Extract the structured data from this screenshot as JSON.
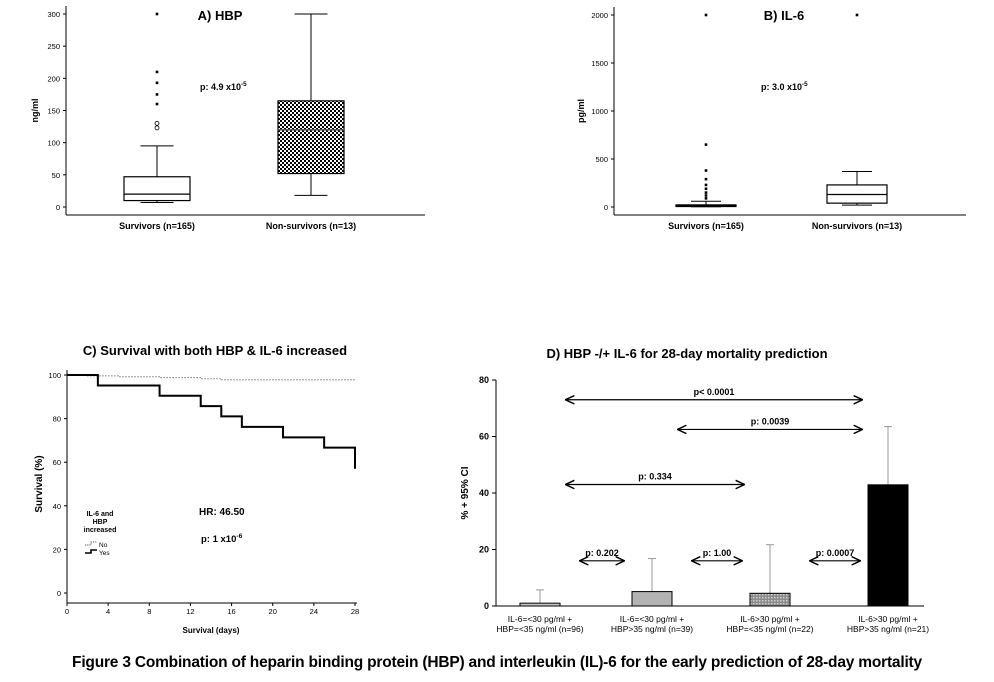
{
  "caption": "Figure 3 Combination of heparin binding protein (HBP) and interleukin (IL)-6 for the early prediction of 28-day mortality",
  "chart_data": [
    {
      "id": "A",
      "type": "box",
      "title": "A) HBP",
      "ylabel": "ng/ml",
      "xlabel": "",
      "ylim": [
        0,
        300
      ],
      "yticks": [
        0,
        50,
        100,
        150,
        200,
        250,
        300
      ],
      "annotation": "p: 4.9 x10",
      "annotation_exp": "-5",
      "groups": [
        {
          "name": "Survivors (n=165)",
          "min": 7,
          "q1": 10,
          "median": 20,
          "q3": 47,
          "max": 95,
          "outliers_circle": [
            123,
            130
          ],
          "outliers_star": [
            160,
            175,
            193,
            210,
            300
          ]
        },
        {
          "name": "Non-survivors (n=13)",
          "min": 18,
          "q1": 52,
          "median": 120,
          "q3": 165,
          "max": 300,
          "outliers_circle": [],
          "outliers_star": [],
          "hatched": true
        }
      ]
    },
    {
      "id": "B",
      "type": "box",
      "title": "B) IL-6",
      "ylabel": "pg/ml",
      "xlabel": "",
      "ylim": [
        0,
        2000
      ],
      "yticks": [
        0,
        500,
        1000,
        1500,
        2000
      ],
      "annotation": "p: 3.0 x10",
      "annotation_exp": "-5",
      "groups": [
        {
          "name": "Survivors (n=165)",
          "min": 2,
          "q1": 5,
          "median": 10,
          "q3": 22,
          "max": 60,
          "outliers_circle": [],
          "outliers_star": [
            90,
            120,
            150,
            190,
            230,
            290,
            380,
            650,
            2000
          ]
        },
        {
          "name": "Non-survivors (n=13)",
          "min": 20,
          "q1": 40,
          "median": 130,
          "q3": 230,
          "max": 370,
          "outliers_circle": [],
          "outliers_star": [
            2000
          ]
        }
      ]
    },
    {
      "id": "C",
      "type": "line",
      "title": "C) Survival with both HBP & IL-6 increased",
      "xlabel": "Survival (days)",
      "ylabel": "Survival (%)",
      "xlim": [
        0,
        28
      ],
      "ylim": [
        0,
        100
      ],
      "xticks": [
        0,
        4,
        8,
        12,
        16,
        20,
        24,
        28
      ],
      "yticks": [
        0,
        20,
        40,
        60,
        80,
        100
      ],
      "legend_title": [
        "IL-6 and",
        "HBP",
        "increased"
      ],
      "hr_text": "HR: 46.50",
      "p_text": "p: 1 x10",
      "p_exp": "-6",
      "series": [
        {
          "name": "No",
          "style": "dotted",
          "x": [
            0,
            2,
            5,
            9,
            13,
            15,
            28
          ],
          "y": [
            100,
            99.6,
            99.2,
            98.8,
            98.3,
            97.8,
            97.8
          ]
        },
        {
          "name": "Yes",
          "style": "solid",
          "x": [
            0,
            3,
            9,
            13,
            15,
            17,
            21,
            25,
            28
          ],
          "y": [
            100,
            95.2,
            90.5,
            85.7,
            81.0,
            76.2,
            71.4,
            66.7,
            57.0
          ]
        }
      ]
    },
    {
      "id": "D",
      "type": "bar",
      "title": "D) HBP -/+ IL-6 for 28-day mortality prediction",
      "ylabel": "% + 95% CI",
      "xlabel": "",
      "ylim": [
        0,
        80
      ],
      "yticks": [
        0,
        20,
        40,
        60,
        80
      ],
      "categories": [
        [
          "IL-6=<30 pg/ml +",
          "HBP=<35 ng/ml (n=96)"
        ],
        [
          "IL-6=<30 pg/ml +",
          "HBP>35 ng/ml (n=39)"
        ],
        [
          "IL-6>30 pg/ml +",
          "HBP=<35 ng/ml (n=22)"
        ],
        [
          "IL-6>30 pg/ml +",
          "HBP>35 ng/ml (n=21)"
        ]
      ],
      "values": [
        1.0,
        5.1,
        4.5,
        42.9
      ],
      "ci_upper": [
        5.7,
        16.8,
        21.7,
        63.5
      ],
      "fills": [
        "#c8c8c8",
        "#b3b3b3",
        "#9a9a9a",
        "#000000"
      ],
      "comparisons": [
        {
          "from": 0,
          "to": 1,
          "label": "p: 0.202",
          "level": 16
        },
        {
          "from": 1,
          "to": 2,
          "label": "p: 1.00",
          "level": 16
        },
        {
          "from": 2,
          "to": 3,
          "label": "p: 0.0007",
          "level": 16
        },
        {
          "from": 0,
          "to": 2,
          "label": "p: 0.334",
          "level": 43
        },
        {
          "from": 1,
          "to": 3,
          "label": "p: 0.0039",
          "level": 62.5
        },
        {
          "from": 0,
          "to": 3,
          "label": "p< 0.0001",
          "level": 73
        }
      ]
    }
  ]
}
